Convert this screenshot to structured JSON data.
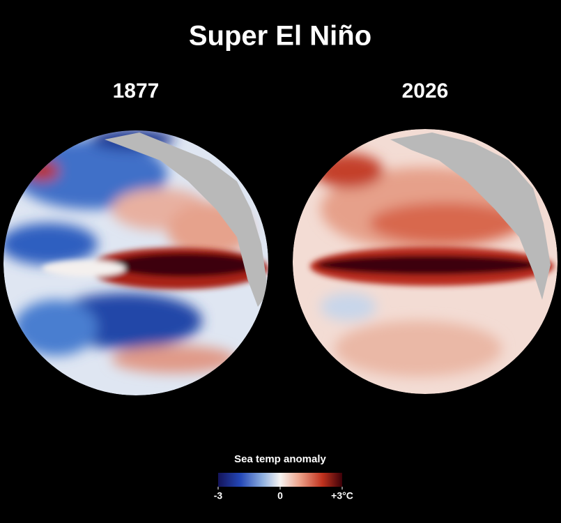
{
  "title": "Super El Niño",
  "panels": [
    {
      "label": "1877"
    },
    {
      "label": "2026"
    }
  ],
  "legend": {
    "title": "Sea temp anomaly",
    "lim": [
      -3,
      3
    ],
    "ticks": [
      -3,
      0,
      {
        "value": 3,
        "label": "+3°C"
      }
    ]
  }
}
